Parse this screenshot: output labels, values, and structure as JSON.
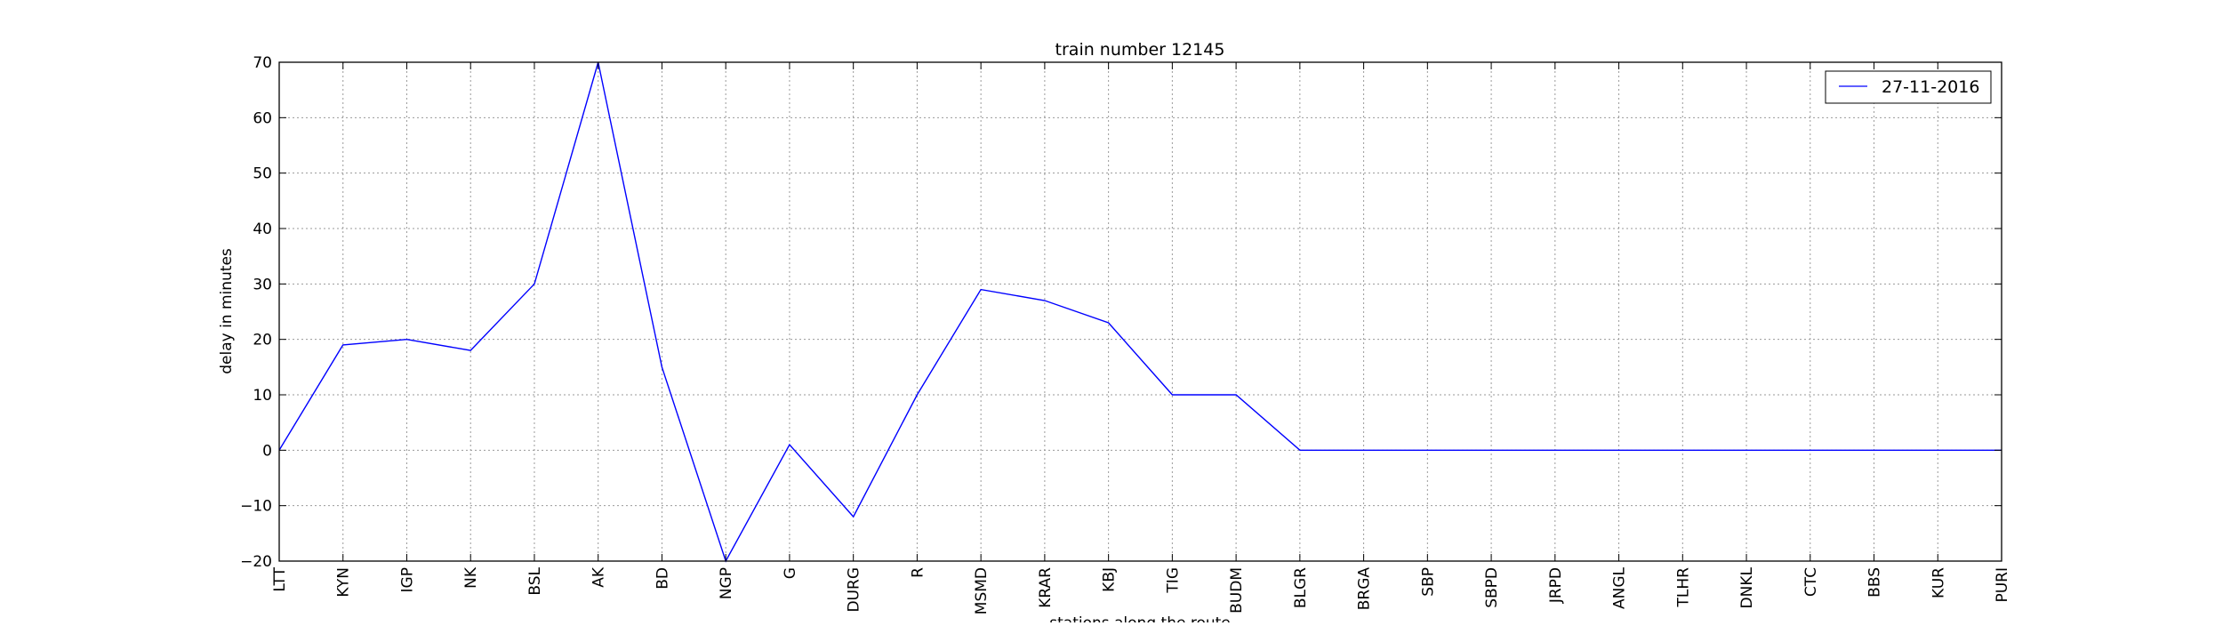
{
  "chart_data": {
    "type": "line",
    "title": "train number 12145",
    "xlabel": "stations along the route",
    "ylabel": "delay in minutes",
    "ylim": [
      -20,
      70
    ],
    "yticks": [
      -20,
      -10,
      0,
      10,
      20,
      30,
      40,
      50,
      60,
      70
    ],
    "ytick_labels": [
      "−20",
      "−10",
      "0",
      "10",
      "20",
      "30",
      "40",
      "50",
      "60",
      "70"
    ],
    "grid": true,
    "legend_position": "top-right",
    "categories": [
      "LTT",
      "KYN",
      "IGP",
      "NK",
      "BSL",
      "AK",
      "BD",
      "NGP",
      "G",
      "DURG",
      "R",
      "MSMD",
      "KRAR",
      "KBJ",
      "TIG",
      "BUDM",
      "BLGR",
      "BRGA",
      "SBP",
      "SBPD",
      "JRPD",
      "ANGL",
      "TLHR",
      "DNKL",
      "CTC",
      "BBS",
      "KUR",
      "PURI"
    ],
    "series": [
      {
        "name": "27-11-2016",
        "color": "#0000ff",
        "values": [
          0,
          19,
          20,
          18,
          30,
          70,
          15,
          -20,
          1,
          -12,
          10,
          29,
          27,
          23,
          10,
          10,
          0,
          0,
          0,
          0,
          0,
          0,
          0,
          0,
          0,
          0,
          0,
          0
        ]
      }
    ]
  }
}
